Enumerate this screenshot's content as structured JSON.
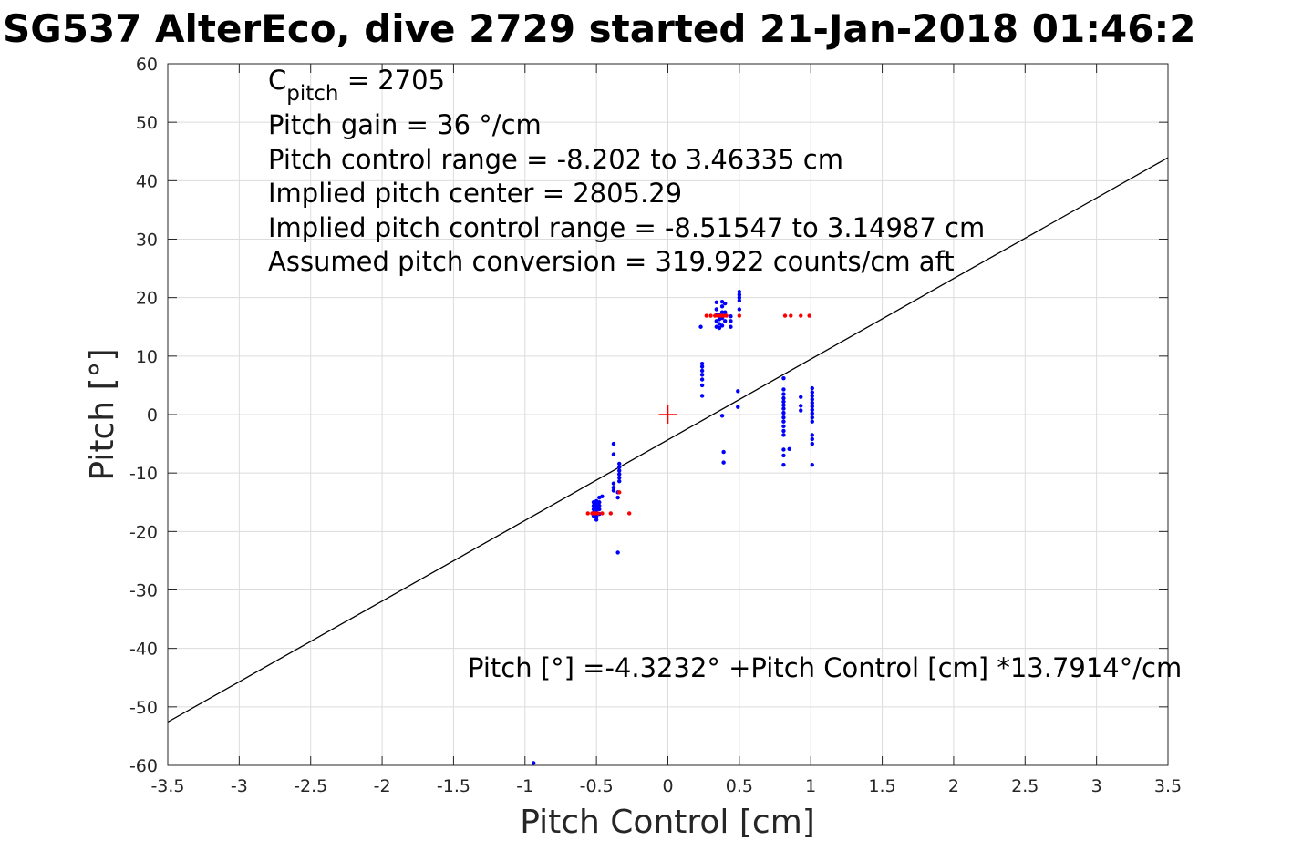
{
  "title": "SG537 AlterEco, dive 2729 started 21-Jan-2018 01:46:2",
  "chart_data": {
    "type": "scatter",
    "xlabel": "Pitch Control [cm]",
    "ylabel": "Pitch [°]",
    "xlim": [
      -3.5,
      3.5
    ],
    "ylim": [
      -60,
      60
    ],
    "x_ticks": [
      "-3.5",
      "-3",
      "-2.5",
      "-2",
      "-1.5",
      "-1",
      "-0.5",
      "0",
      "0.5",
      "1",
      "1.5",
      "2",
      "2.5",
      "3",
      "3.5"
    ],
    "y_ticks": [
      "60",
      "50",
      "40",
      "30",
      "20",
      "10",
      "0",
      "-10",
      "-20",
      "-30",
      "-40",
      "-50",
      "-60"
    ],
    "grid": true,
    "colors": {
      "observed": "#0000ff",
      "reference": "#ff0000",
      "fit": "#000000"
    },
    "annotations": {
      "cpitch_main": "C",
      "cpitch_sub": "pitch",
      "cpitch_value": " = 2705",
      "gain": "Pitch gain = 36 °/cm",
      "control_range": "Pitch control range = -8.202 to 3.46335 cm",
      "implied_center": "Implied pitch center = 2805.29",
      "implied_range": "Implied pitch control range = -8.51547 to 3.14987 cm",
      "conversion": "Assumed pitch conversion = 319.922 counts/cm aft",
      "fit_equation": "Pitch [°] =-4.3232° +Pitch Control [cm] *13.7914°/cm"
    },
    "fit_line": {
      "intercept": -4.3232,
      "slope": 13.7914,
      "x_range": [
        -3.5,
        3.5
      ]
    },
    "center_marker": {
      "x": 0,
      "y": 0
    },
    "series": [
      {
        "points": [
          [
            -0.52,
            -15.0
          ],
          [
            -0.52,
            -15.6
          ],
          [
            -0.52,
            -16.2
          ],
          [
            -0.52,
            -16.8
          ],
          [
            -0.52,
            -17.3
          ],
          [
            -0.5,
            -14.8
          ],
          [
            -0.5,
            -15.3
          ],
          [
            -0.5,
            -15.8
          ],
          [
            -0.5,
            -16.3
          ],
          [
            -0.5,
            -16.9
          ],
          [
            -0.5,
            -17.4
          ],
          [
            -0.5,
            -18.0
          ],
          [
            -0.48,
            -14.2
          ],
          [
            -0.48,
            -15.0
          ],
          [
            -0.48,
            -15.6
          ],
          [
            -0.48,
            -16.2
          ],
          [
            -0.48,
            -17.0
          ],
          [
            -0.46,
            -14.0
          ],
          [
            -0.38,
            -5.0
          ],
          [
            -0.38,
            -6.8
          ],
          [
            -0.38,
            -11.8
          ],
          [
            -0.38,
            -12.5
          ],
          [
            -0.38,
            -13.0
          ],
          [
            -0.35,
            -13.3
          ],
          [
            -0.35,
            -14.2
          ],
          [
            -0.35,
            -23.6
          ],
          [
            -0.34,
            -8.4
          ],
          [
            -0.34,
            -9.0
          ],
          [
            -0.34,
            -9.6
          ],
          [
            -0.34,
            -10.2
          ],
          [
            -0.34,
            -10.8
          ],
          [
            -0.34,
            -11.4
          ],
          [
            -0.94,
            -59.6
          ],
          [
            0.24,
            3.2
          ],
          [
            0.24,
            5.0
          ],
          [
            0.24,
            6.0
          ],
          [
            0.24,
            6.8
          ],
          [
            0.24,
            7.5
          ],
          [
            0.24,
            8.2
          ],
          [
            0.24,
            8.7
          ],
          [
            0.23,
            15.0
          ],
          [
            0.34,
            15.0
          ],
          [
            0.34,
            16.0
          ],
          [
            0.34,
            17.0
          ],
          [
            0.34,
            18.0
          ],
          [
            0.34,
            19.2
          ],
          [
            0.36,
            14.8
          ],
          [
            0.36,
            15.5
          ],
          [
            0.36,
            16.3
          ],
          [
            0.36,
            17.0
          ],
          [
            0.38,
            15.2
          ],
          [
            0.38,
            16.5
          ],
          [
            0.38,
            17.5
          ],
          [
            0.38,
            18.5
          ],
          [
            0.38,
            19.3
          ],
          [
            0.4,
            16.0
          ],
          [
            0.4,
            17.5
          ],
          [
            0.4,
            19.0
          ],
          [
            0.44,
            15.0
          ],
          [
            0.44,
            16.0
          ],
          [
            0.44,
            16.8
          ],
          [
            0.5,
            18.0
          ],
          [
            0.5,
            19.5
          ],
          [
            0.5,
            20.0
          ],
          [
            0.5,
            20.5
          ],
          [
            0.5,
            21.0
          ],
          [
            0.38,
            -0.2
          ],
          [
            0.39,
            -6.4
          ],
          [
            0.39,
            -8.2
          ],
          [
            0.49,
            4.0
          ],
          [
            0.49,
            1.3
          ],
          [
            0.81,
            6.2
          ],
          [
            0.81,
            4.3
          ],
          [
            0.81,
            3.5
          ],
          [
            0.81,
            2.8
          ],
          [
            0.81,
            2.2
          ],
          [
            0.81,
            1.6
          ],
          [
            0.81,
            1.0
          ],
          [
            0.81,
            0.3
          ],
          [
            0.81,
            -0.5
          ],
          [
            0.81,
            -1.2
          ],
          [
            0.81,
            -2.0
          ],
          [
            0.81,
            -2.8
          ],
          [
            0.81,
            -3.5
          ],
          [
            0.81,
            -6.0
          ],
          [
            0.81,
            -7.0
          ],
          [
            0.81,
            -8.6
          ],
          [
            0.85,
            -5.9
          ],
          [
            0.93,
            3.0
          ],
          [
            0.93,
            1.5
          ],
          [
            0.93,
            0.7
          ],
          [
            1.01,
            4.5
          ],
          [
            1.01,
            3.8
          ],
          [
            1.01,
            3.2
          ],
          [
            1.01,
            2.6
          ],
          [
            1.01,
            2.0
          ],
          [
            1.01,
            1.4
          ],
          [
            1.01,
            0.8
          ],
          [
            1.01,
            0.2
          ],
          [
            1.01,
            -0.5
          ],
          [
            1.01,
            -1.2
          ],
          [
            1.01,
            -3.5
          ],
          [
            1.01,
            -4.2
          ],
          [
            1.01,
            -5.0
          ],
          [
            1.01,
            -8.6
          ]
        ]
      },
      {
        "points": [
          [
            -0.56,
            -16.9
          ],
          [
            -0.53,
            -16.9
          ],
          [
            -0.51,
            -16.9
          ],
          [
            -0.49,
            -16.9
          ],
          [
            -0.46,
            -16.9
          ],
          [
            -0.4,
            -16.9
          ],
          [
            -0.27,
            -16.9
          ],
          [
            -0.34,
            -13.3
          ],
          [
            0.27,
            16.9
          ],
          [
            0.3,
            16.9
          ],
          [
            0.33,
            16.9
          ],
          [
            0.35,
            16.9
          ],
          [
            0.37,
            16.9
          ],
          [
            0.39,
            16.9
          ],
          [
            0.41,
            16.9
          ],
          [
            0.5,
            16.9
          ],
          [
            0.82,
            16.9
          ],
          [
            0.86,
            16.9
          ],
          [
            0.93,
            16.9
          ],
          [
            0.99,
            16.9
          ]
        ]
      }
    ]
  }
}
